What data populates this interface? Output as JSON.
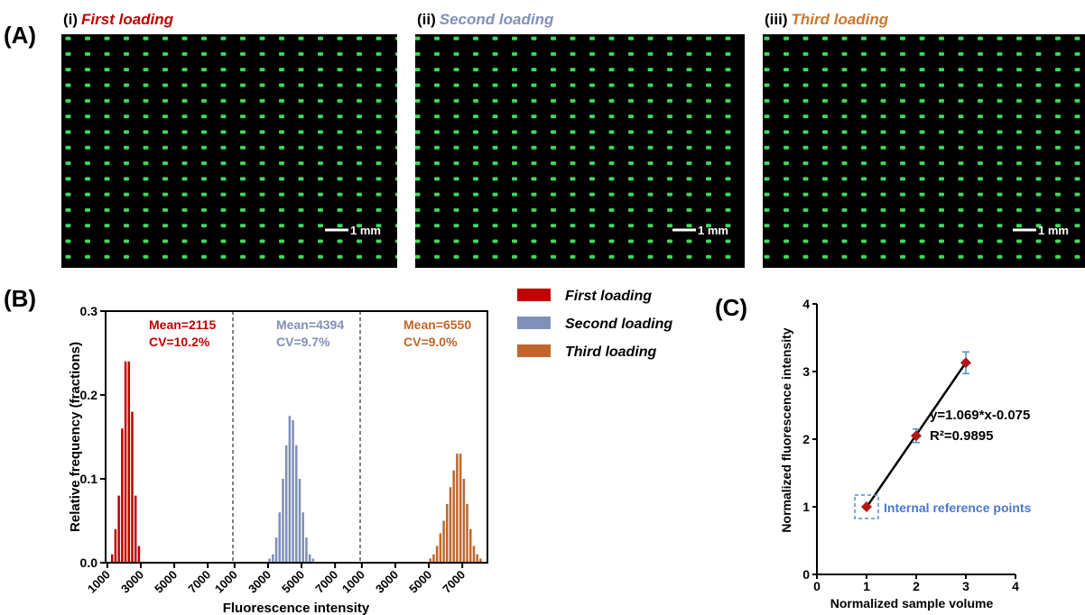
{
  "panel_labels": [
    "(A)",
    "(B)",
    "(C)"
  ],
  "images": [
    {
      "label": "(i)",
      "title": "First loading",
      "color": "#c00000",
      "scale_bar": "1 mm"
    },
    {
      "label": "(ii)",
      "title": "Second loading",
      "color": "#8090b8",
      "scale_bar": "1 mm"
    },
    {
      "label": "(iii)",
      "title": "Third loading",
      "color": "#c8782e",
      "scale_bar": "1 mm"
    }
  ],
  "chart_data": [
    {
      "type": "histogram",
      "ylabel": "Relative frequency (fractions)",
      "xlabel": "Fluorescence intensity",
      "xlim": [
        900,
        8500
      ],
      "ylim": [
        0,
        0.3
      ],
      "yticks": [
        {
          "value": 0,
          "label": "0.0"
        },
        0.1,
        0.2,
        0.3
      ],
      "xticks": [
        1000,
        3000,
        5000,
        7000
      ],
      "series": [
        {
          "name": "First loading",
          "color": "#c00000",
          "bins": [
            1200,
            1400,
            1600,
            1800,
            2000,
            2200,
            2400,
            2600,
            2800,
            3000
          ],
          "values": [
            0.01,
            0.04,
            0.08,
            0.16,
            0.24,
            0.24,
            0.18,
            0.08,
            0.02
          ],
          "mean_label": "Mean=2115",
          "cv_label": "CV=10.2%"
        },
        {
          "name": "Second loading",
          "color": "#8090b8",
          "bins": [
            3000,
            3200,
            3400,
            3600,
            3800,
            4000,
            4200,
            4400,
            4600,
            4800,
            5000,
            5200,
            5400,
            5600,
            5800
          ],
          "values": [
            0.005,
            0.01,
            0.03,
            0.06,
            0.1,
            0.14,
            0.175,
            0.17,
            0.14,
            0.1,
            0.06,
            0.03,
            0.01,
            0.005
          ],
          "mean_label": "Mean=4394",
          "cv_label": "CV=9.7%"
        },
        {
          "name": "Third loading",
          "color": "#c0662a",
          "bins": [
            5000,
            5200,
            5400,
            5600,
            5800,
            6000,
            6200,
            6400,
            6600,
            6800,
            7000,
            7200,
            7400,
            7600,
            7800,
            8000,
            8200
          ],
          "values": [
            0.005,
            0.01,
            0.02,
            0.035,
            0.05,
            0.07,
            0.09,
            0.11,
            0.13,
            0.13,
            0.1,
            0.07,
            0.04,
            0.02,
            0.01,
            0.005
          ],
          "mean_label": "Mean=6550",
          "cv_label": "CV=9.0%"
        }
      ]
    },
    {
      "type": "scatter",
      "xlabel": "Normalized sample volume",
      "ylabel": "Normalized fluorescence intensity",
      "xlim": [
        0,
        4
      ],
      "ylim": [
        0,
        4
      ],
      "xticks": [
        0,
        1,
        2,
        3,
        4
      ],
      "yticks": [
        0,
        1,
        2,
        3,
        4
      ],
      "x": [
        1,
        2,
        3
      ],
      "values": [
        1,
        2.05,
        3.13
      ],
      "errors": [
        null,
        0.1,
        0.16
      ],
      "color": "#b01818",
      "error_color": "#4a90d0",
      "fit": {
        "slope": 1.069,
        "intercept": -0.075
      },
      "equation": "y=1.069*x-0.075",
      "r2": "R²=0.9895",
      "annotation": "Internal reference points"
    }
  ]
}
